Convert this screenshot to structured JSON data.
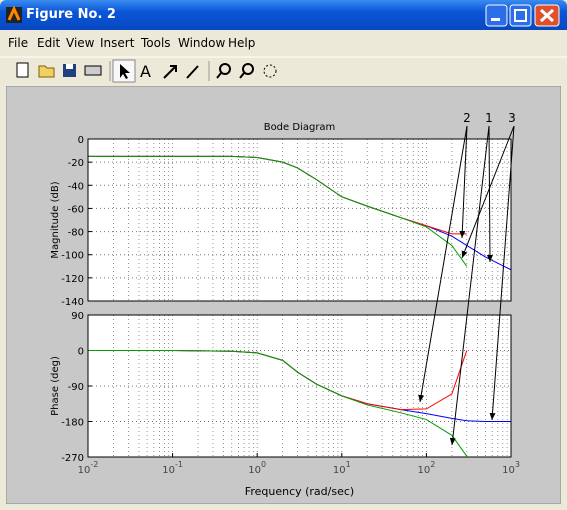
{
  "window": {
    "title": "Figure No. 2",
    "menu": [
      "File",
      "Edit",
      "View",
      "Insert",
      "Tools",
      "Window",
      "Help"
    ]
  },
  "chart_data": [
    {
      "type": "line",
      "title": "Bode Diagram",
      "y_label": "Magnitude (dB)",
      "log_x": true,
      "grid": true,
      "x": [
        0.01,
        0.1,
        0.5,
        1,
        2,
        3,
        5,
        10,
        20,
        50,
        100,
        200,
        300,
        500,
        1000
      ],
      "xlim": [
        0.01,
        1000
      ],
      "ylim": [
        -140,
        0
      ],
      "yticks": [
        0,
        -20,
        -40,
        -60,
        -80,
        -100,
        -120,
        -140
      ],
      "annotations": [
        "2",
        "1",
        "3"
      ],
      "series": [
        {
          "color": "#0000ff",
          "values": [
            -15,
            -15,
            -15,
            -16,
            -20,
            -25,
            -35,
            -50,
            -58,
            -68,
            -75,
            -84,
            -92,
            -102,
            -113
          ]
        },
        {
          "color": "#ff0000",
          "values": [
            -15,
            -15,
            -15,
            -16,
            -20,
            -25,
            -35,
            -50,
            -58,
            -68,
            -75,
            -82,
            -82,
            null,
            null
          ]
        },
        {
          "color": "#00a000",
          "values": [
            -15,
            -15,
            -15,
            -16,
            -20,
            -25,
            -35,
            -50,
            -58,
            -68,
            -76,
            -92,
            -110,
            null,
            null
          ]
        }
      ]
    },
    {
      "type": "line",
      "y_label": "Phase (deg)",
      "x_label": "Frequency  (rad/sec)",
      "log_x": true,
      "grid": true,
      "x": [
        0.01,
        0.1,
        0.5,
        1,
        2,
        3,
        5,
        10,
        20,
        50,
        100,
        200,
        300,
        500,
        1000
      ],
      "xlim": [
        0.01,
        1000
      ],
      "ylim": [
        -270,
        90
      ],
      "yticks": [
        90,
        0,
        -90,
        -180,
        -270
      ],
      "xticks": [
        {
          "value": 0.01,
          "label": "10-2"
        },
        {
          "value": 0.1,
          "label": "10-1"
        },
        {
          "value": 1,
          "label": "100"
        },
        {
          "value": 10,
          "label": "101"
        },
        {
          "value": 100,
          "label": "102"
        },
        {
          "value": 1000,
          "label": "103"
        }
      ],
      "series": [
        {
          "color": "#0000ff",
          "values": [
            0,
            0,
            -2,
            -6,
            -25,
            -55,
            -85,
            -115,
            -135,
            -150,
            -160,
            -172,
            -178,
            -180,
            -180
          ]
        },
        {
          "color": "#ff0000",
          "values": [
            0,
            0,
            -2,
            -6,
            -25,
            -55,
            -85,
            -115,
            -135,
            -150,
            -148,
            -110,
            0,
            null,
            null
          ]
        },
        {
          "color": "#00a000",
          "values": [
            0,
            0,
            -2,
            -6,
            -25,
            -55,
            -85,
            -115,
            -138,
            -158,
            -175,
            -215,
            -268,
            null,
            null
          ]
        }
      ]
    }
  ]
}
